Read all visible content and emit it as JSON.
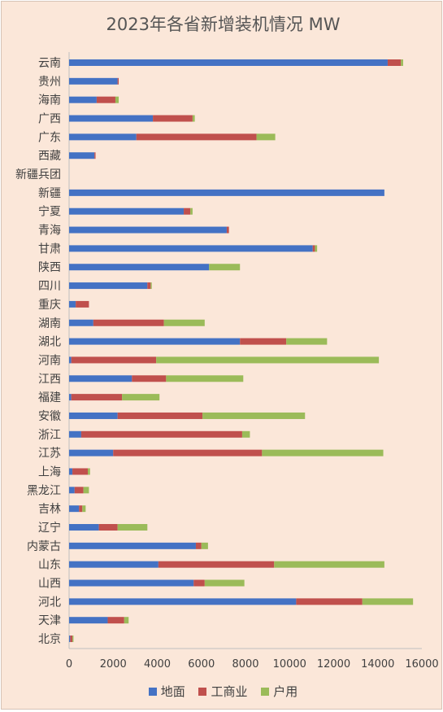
{
  "chart_data": {
    "type": "bar",
    "orientation": "horizontal",
    "stacked": true,
    "title": "2023年各省新增装机情况  MW",
    "xlabel": "",
    "ylabel": "",
    "xlim": [
      0,
      16000
    ],
    "x_ticks": [
      0,
      2000,
      4000,
      6000,
      8000,
      10000,
      12000,
      14000,
      16000
    ],
    "grid": false,
    "legend_position": "bottom",
    "categories": [
      "云南",
      "贵州",
      "海南",
      "广西",
      "广东",
      "西藏",
      "新疆兵团",
      "新疆",
      "宁夏",
      "青海",
      "甘肃",
      "陕西",
      "四川",
      "重庆",
      "湖南",
      "湖北",
      "河南",
      "江西",
      "福建",
      "安徽",
      "浙江",
      "江苏",
      "上海",
      "黑龙江",
      "吉林",
      "辽宁",
      "内蒙古",
      "山东",
      "山西",
      "河北",
      "天津",
      "北京"
    ],
    "series": [
      {
        "name": "地面",
        "color": "#4472c4",
        "values": [
          14450,
          2200,
          1250,
          3800,
          3050,
          1150,
          0,
          14300,
          5200,
          7150,
          11050,
          6350,
          3550,
          300,
          1100,
          7750,
          100,
          2850,
          100,
          2200,
          550,
          2000,
          150,
          250,
          450,
          1350,
          5750,
          4050,
          5650,
          10300,
          1750,
          50
        ]
      },
      {
        "name": "工商业",
        "color": "#c0504d",
        "values": [
          600,
          50,
          850,
          1800,
          5450,
          50,
          0,
          0,
          300,
          100,
          100,
          0,
          150,
          600,
          3200,
          2100,
          3850,
          1550,
          2300,
          3850,
          7300,
          6750,
          700,
          400,
          150,
          850,
          250,
          5250,
          500,
          3000,
          750,
          100
        ]
      },
      {
        "name": "户用",
        "color": "#9bbb59",
        "values": [
          100,
          0,
          150,
          100,
          850,
          0,
          0,
          0,
          100,
          0,
          100,
          1400,
          50,
          0,
          1850,
          1850,
          10100,
          3500,
          1700,
          4650,
          350,
          5500,
          100,
          250,
          150,
          1350,
          300,
          5000,
          1800,
          2300,
          200,
          50
        ]
      }
    ]
  }
}
